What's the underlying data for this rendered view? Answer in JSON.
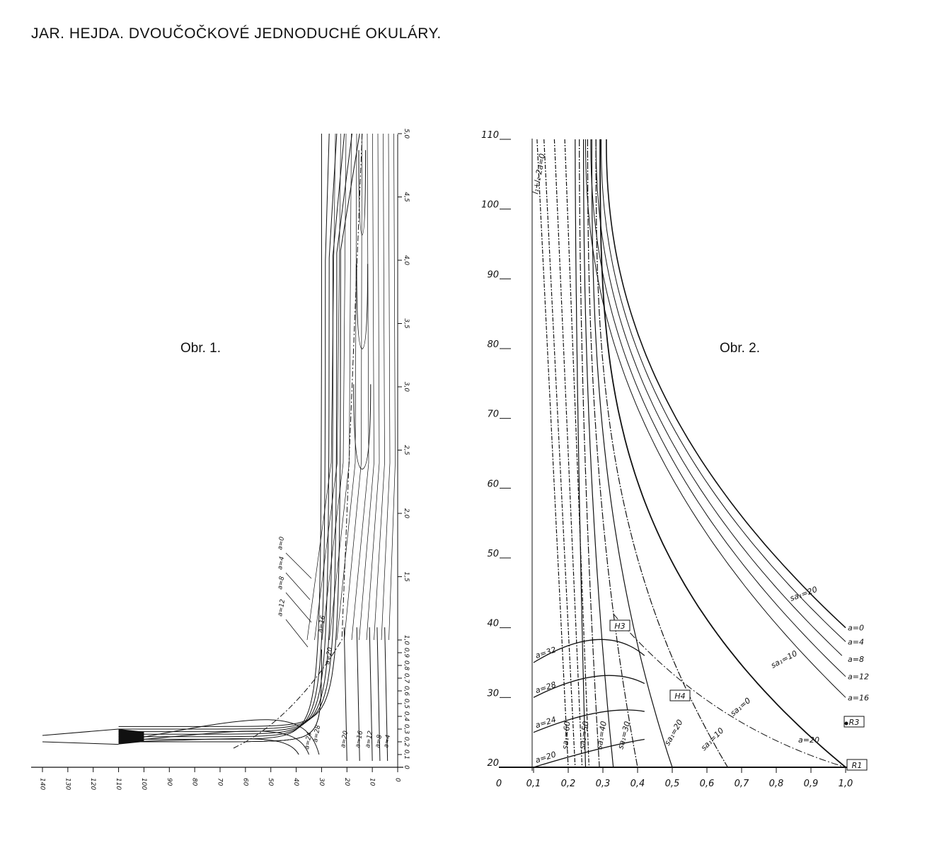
{
  "page_title": "JAR. HEJDA. DVOUČOČKOVÉ JEDNODUCHÉ OKULÁRY.",
  "chart_data": [
    {
      "id": "fig1",
      "type": "line",
      "title": "Obr. 1.",
      "x_ticks": [
        "140",
        "130",
        "120",
        "110",
        "100",
        "90",
        "80",
        "70",
        "60",
        "50",
        "40",
        "30",
        "20",
        "10",
        "0"
      ],
      "y_ticks": [
        "0",
        "0,1",
        "0,2",
        "0,3",
        "0,4",
        "0,5",
        "0,6",
        "0,7",
        "0,8",
        "0,9",
        "1,0",
        "1,5",
        "2,0",
        "2,5",
        "3,0",
        "3,5",
        "4,0",
        "4,5",
        "5,0"
      ],
      "curve_labels": [
        "a=0",
        "a=4",
        "a=8",
        "a=12",
        "a=16",
        "a=20",
        "a=24",
        "a=28",
        "a=20",
        "a=16",
        "a=12",
        "a=8",
        "a=4"
      ],
      "series": [
        {
          "a": 0,
          "asymptote_x": 30
        },
        {
          "a": 4,
          "asymptote_x": 28.5
        },
        {
          "a": 8,
          "asymptote_x": 27
        },
        {
          "a": 12,
          "asymptote_x": 25.5
        },
        {
          "a": 16,
          "asymptote_x": 24
        },
        {
          "a": 20,
          "asymptote_x": 22.5
        }
      ],
      "right_branches": [
        {
          "a": 20,
          "x": 20
        },
        {
          "a": 16,
          "x": 15
        },
        {
          "a": 12,
          "x": 10
        },
        {
          "a": 8,
          "x": 7
        },
        {
          "a": 4,
          "x": 4
        }
      ],
      "u_curves": [
        {
          "vertex_x": 14,
          "vertex_y": 2.35,
          "width": 4
        },
        {
          "vertex_x": 14,
          "vertex_y": 3.3,
          "width": 2.6
        },
        {
          "vertex_x": 14,
          "vertex_y": 4.2,
          "width": 1.6
        }
      ],
      "loops": [
        {
          "peak_y": 0.42,
          "peak_x": 36
        },
        {
          "peak_y": 0.3,
          "peak_x": 40
        },
        {
          "peak_y": 0.22,
          "peak_x": 44
        }
      ],
      "band_x": [
        140,
        110
      ],
      "band_y": [
        0.18,
        0.25
      ]
    },
    {
      "id": "fig2",
      "type": "line",
      "title": "Obr. 2.",
      "x_ticks": [
        "0",
        "0,1",
        "0,2",
        "0,3",
        "0,4",
        "0,5",
        "0,6",
        "0,7",
        "0,8",
        "0,9",
        "1,0"
      ],
      "y_ticks": [
        "20",
        "30",
        "40",
        "50",
        "60",
        "70",
        "80",
        "90",
        "100",
        "110"
      ],
      "xlim": [
        0,
        1.0
      ],
      "ylim": [
        20,
        110
      ],
      "top_label": "l₁+l₂-2a=0",
      "curve_labels_right": [
        "a=0",
        "a=4",
        "a=8",
        "a=12",
        "a=16"
      ],
      "curve_labels_left": [
        "a=32",
        "a=28",
        "a=24",
        "a=20"
      ],
      "a20_label": "a=20",
      "sa_labels": [
        "sa₁=20",
        "sa₁=10",
        "sa₁=0",
        "sa₁=10",
        "sa₁=20",
        "sa₁=30",
        "sa₁=40",
        "sa₁=50",
        "sa₁=60"
      ],
      "boxes": [
        "H3",
        "H4",
        "R3",
        "R1"
      ],
      "series": [
        {
          "name": "a=0",
          "x_end": 1.0,
          "y_end": 40
        },
        {
          "name": "a=4",
          "x_end": 1.0,
          "y_end": 38
        },
        {
          "name": "a=8",
          "x_end": 1.0,
          "y_end": 35.5
        },
        {
          "name": "a=12",
          "x_end": 1.0,
          "y_end": 33
        },
        {
          "name": "a=16",
          "x_end": 1.0,
          "y_end": 30
        }
      ]
    }
  ]
}
